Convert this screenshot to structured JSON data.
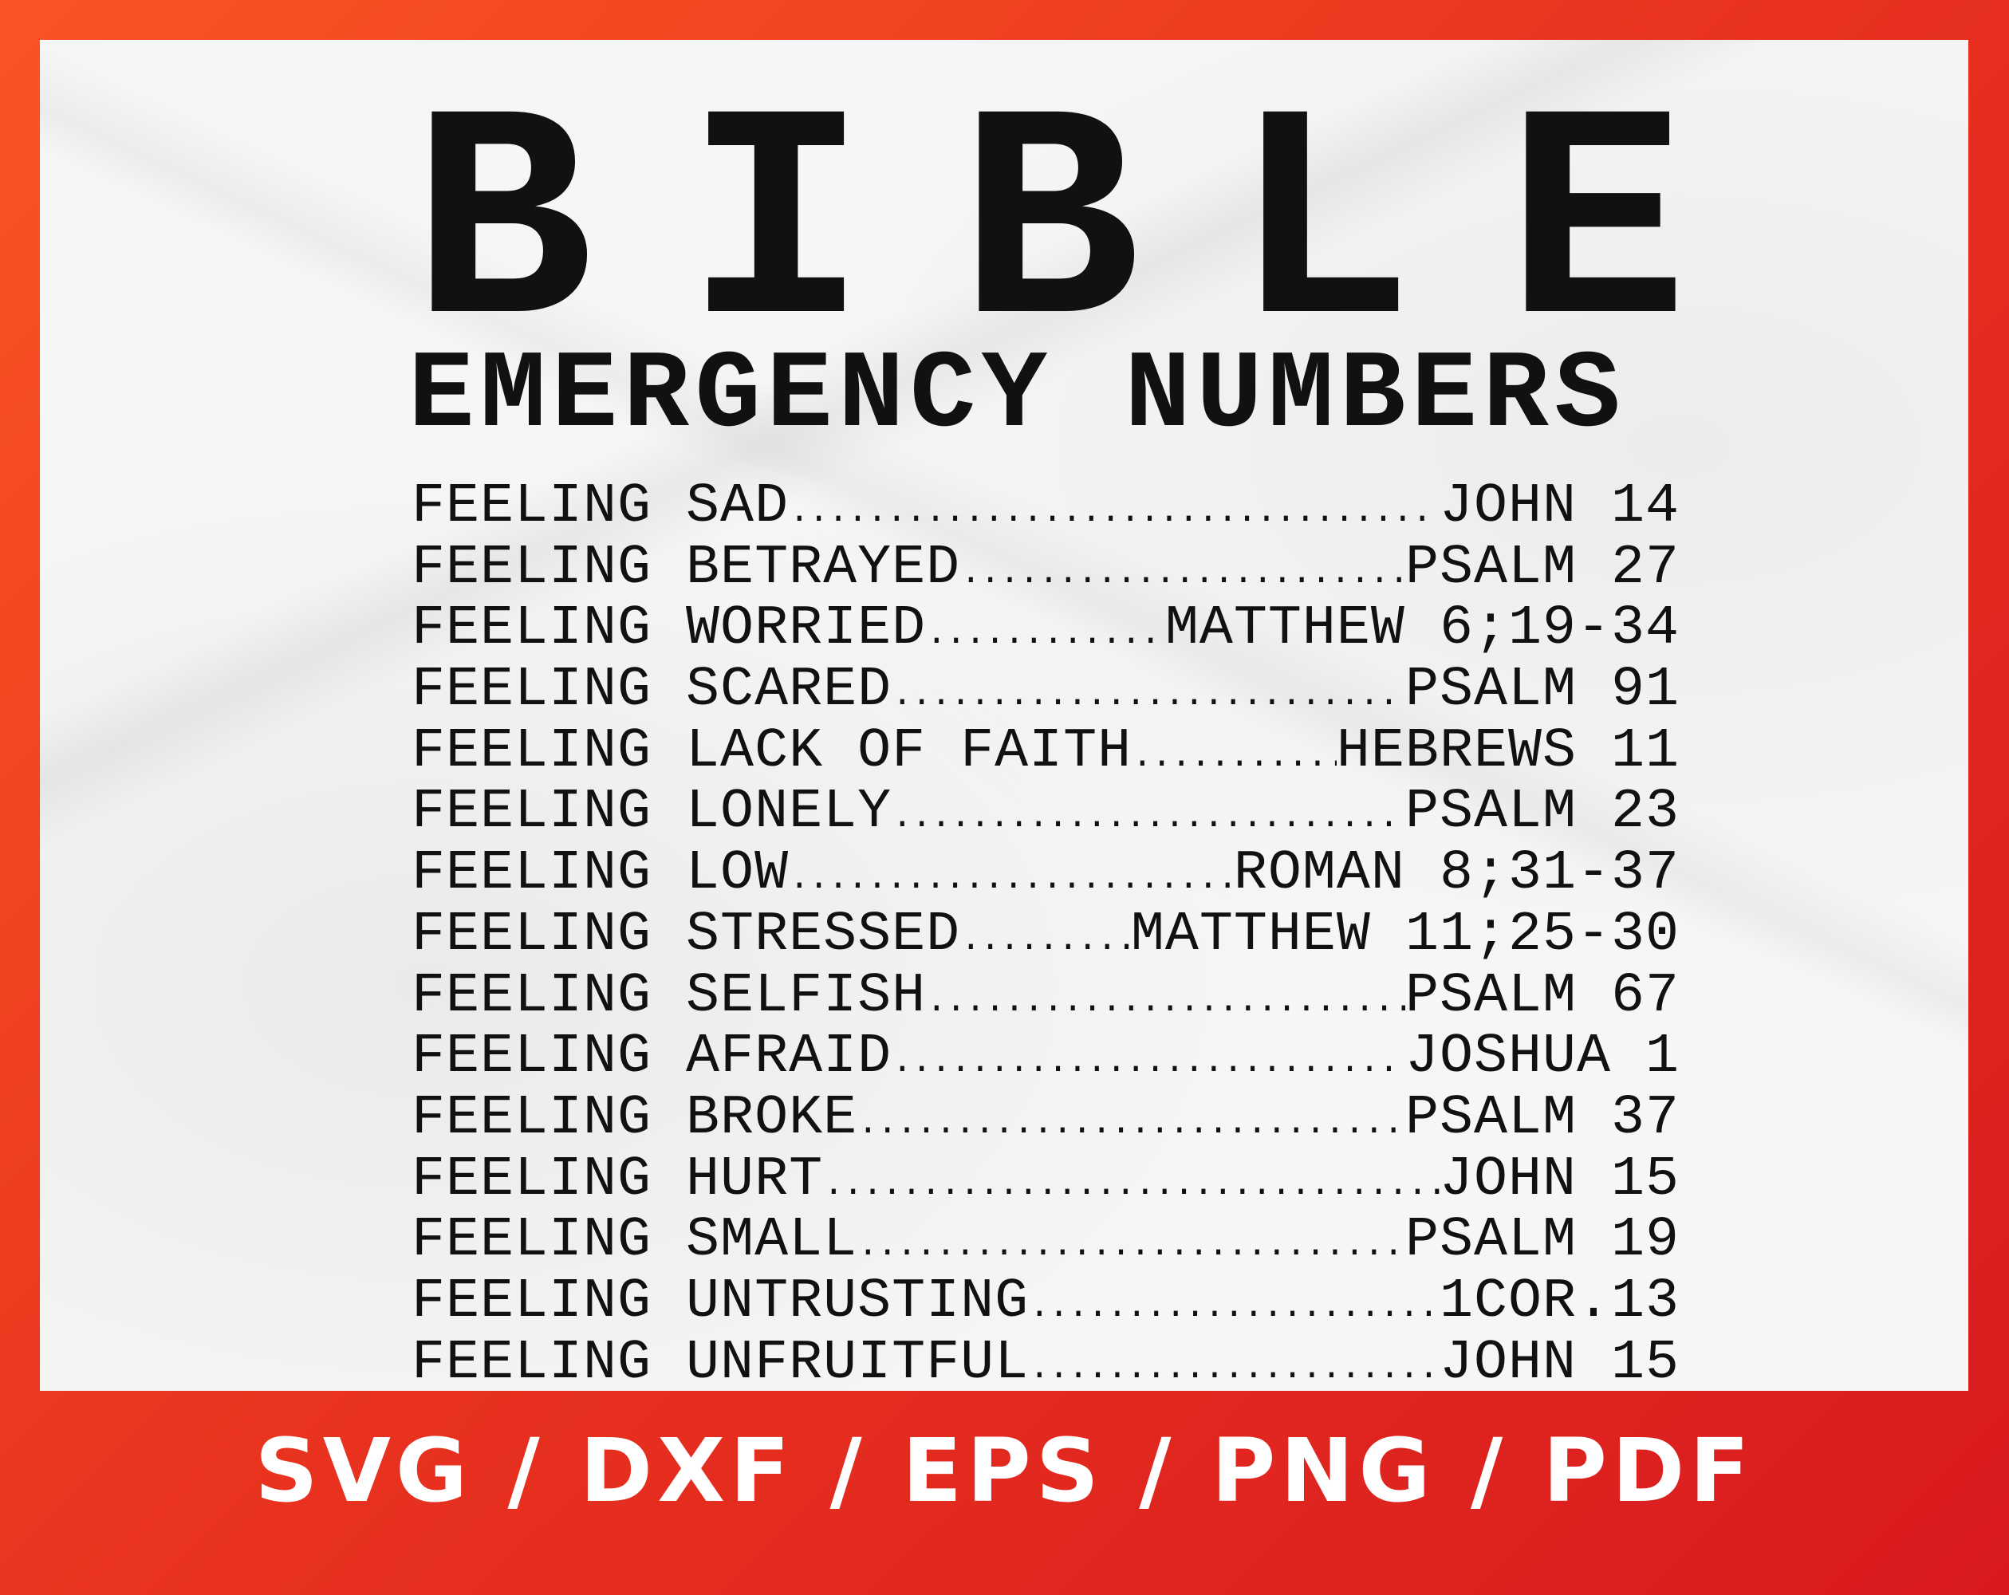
{
  "title": [
    "B",
    "I",
    "B",
    "L",
    "E"
  ],
  "subtitle": "EMERGENCY NUMBERS",
  "entries": [
    {
      "label": "FEELING SAD",
      "ref": "JOHN 14"
    },
    {
      "label": "FEELING BETRAYED",
      "ref": "PSALM 27"
    },
    {
      "label": "FEELING WORRIED",
      "ref": "MATTHEW 6;19-34"
    },
    {
      "label": "FEELING SCARED",
      "ref": "PSALM 91"
    },
    {
      "label": "FEELING LACK OF FAITH",
      "ref": "HEBREWS 11"
    },
    {
      "label": "FEELING LONELY",
      "ref": "PSALM 23"
    },
    {
      "label": "FEELING LOW",
      "ref": "ROMAN 8;31-37"
    },
    {
      "label": "FEELING STRESSED",
      "ref": "MATTHEW 11;25-30"
    },
    {
      "label": "FEELING SELFISH",
      "ref": "PSALM 67"
    },
    {
      "label": "FEELING AFRAID",
      "ref": "JOSHUA 1"
    },
    {
      "label": "FEELING BROKE",
      "ref": "PSALM 37"
    },
    {
      "label": "FEELING HURT",
      "ref": "JOHN 15"
    },
    {
      "label": "FEELING SMALL",
      "ref": "PSALM 19"
    },
    {
      "label": "FEELING UNTRUSTING",
      "ref": "1COR.13"
    },
    {
      "label": "FEELING UNFRUITFUL",
      "ref": "JOHN 15"
    }
  ],
  "formats": "SVG / DXF / EPS / PNG / PDF",
  "colors": {
    "border_start": "#fb5424",
    "border_end": "#d81a1f",
    "text": "#111111",
    "background": "#f6f6f6"
  }
}
